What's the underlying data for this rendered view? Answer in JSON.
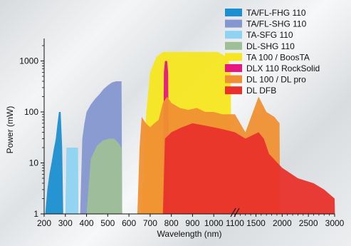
{
  "chart_data": {
    "type": "area",
    "title": "",
    "xlabel": "Wavelength (nm)",
    "ylabel": "Power (mW)",
    "y_scale": "log",
    "ylim": [
      1,
      2000
    ],
    "x_axis": {
      "segments": [
        {
          "range": [
            200,
            1100
          ],
          "ticks": [
            200,
            300,
            400,
            500,
            600,
            700,
            800,
            900,
            1000,
            1100
          ]
        },
        {
          "range": [
            1100,
            3000
          ],
          "ticks": [
            1500,
            2000,
            2500,
            3000
          ]
        }
      ],
      "break_at": 1100
    },
    "y_ticks": [
      1,
      10,
      100,
      1000
    ],
    "grid": false,
    "legend": {
      "position": "top-right",
      "entries": [
        {
          "label": "TA/FL-FHG 110",
          "color": "#1b8fcf"
        },
        {
          "label": "TA/FL-SHG 110",
          "color": "#8497cf"
        },
        {
          "label": "TA-SFG 110",
          "color": "#8ed3f2"
        },
        {
          "label": "DL-SHG 110",
          "color": "#9fbf98"
        },
        {
          "label": "TA 100 / BoosTA",
          "color": "#f6e620"
        },
        {
          "label": "DLX 110 RockSolid",
          "color": "#e6177e"
        },
        {
          "label": "DL 100 / DL pro",
          "color": "#ef9032"
        },
        {
          "label": "DL DFB",
          "color": "#e8312b"
        }
      ]
    },
    "series": [
      {
        "name": "TA/FL-FHG 110",
        "color": "#1b8fcf",
        "x": [
          205,
          215,
          225,
          235,
          245,
          255,
          262,
          270,
          278,
          285,
          290
        ],
        "y": [
          1,
          3,
          6,
          10,
          18,
          30,
          55,
          100,
          100,
          20,
          1
        ]
      },
      {
        "name": "TA/FL-SHG 110",
        "color": "#8497cf",
        "x": [
          370,
          380,
          390,
          400,
          420,
          440,
          460,
          480,
          500,
          520,
          540,
          565,
          568
        ],
        "y": [
          1,
          30,
          60,
          100,
          140,
          180,
          220,
          280,
          330,
          380,
          400,
          400,
          1
        ]
      },
      {
        "name": "TA-SFG 110",
        "color": "#8ed3f2",
        "x": [
          300,
          305,
          320,
          335,
          350,
          360,
          362
        ],
        "y": [
          1,
          20,
          20,
          20,
          20,
          20,
          1
        ]
      },
      {
        "name": "DL-SHG 110",
        "color": "#9fbf98",
        "x": [
          400,
          420,
          450,
          480,
          510,
          530,
          550,
          565,
          568
        ],
        "y": [
          1,
          12,
          22,
          28,
          30,
          30,
          25,
          20,
          1
        ]
      },
      {
        "name": "TA 100 / BoosTA",
        "color": "#f6e620",
        "x": [
          660,
          680,
          700,
          730,
          760,
          780,
          800,
          830,
          860,
          900,
          940,
          980,
          1020,
          1060,
          1080,
          1085
        ],
        "y": [
          1,
          80,
          600,
          1200,
          1500,
          1500,
          1500,
          1500,
          1500,
          1500,
          1500,
          1500,
          1500,
          1200,
          800,
          1
        ]
      },
      {
        "name": "DLX 110 RockSolid",
        "color": "#e6177e",
        "x": [
          760,
          765,
          770,
          780,
          785,
          790
        ],
        "y": [
          1,
          600,
          1000,
          1000,
          600,
          1
        ]
      },
      {
        "name": "DL 100 / DL pro",
        "color": "#ef9032",
        "x": [
          640,
          650,
          660,
          680,
          700,
          720,
          740,
          760,
          780,
          800,
          840,
          880,
          920,
          960,
          1000,
          1040,
          1080,
          1100,
          1300,
          1550,
          1700,
          1850,
          1950,
          1960
        ],
        "y": [
          1,
          20,
          80,
          60,
          50,
          60,
          70,
          150,
          200,
          150,
          120,
          110,
          120,
          100,
          100,
          90,
          90,
          90,
          40,
          200,
          100,
          80,
          60,
          1
        ]
      },
      {
        "name": "DL DFB",
        "color": "#e8312b",
        "x": [
          760,
          770,
          800,
          850,
          900,
          950,
          1000,
          1050,
          1100,
          1300,
          1550,
          1650,
          1750,
          2000,
          2300,
          2600,
          2800,
          3000,
          3005
        ],
        "y": [
          1,
          30,
          40,
          50,
          60,
          55,
          50,
          45,
          40,
          30,
          40,
          30,
          15,
          8,
          5,
          4,
          3,
          2,
          1
        ]
      }
    ]
  }
}
